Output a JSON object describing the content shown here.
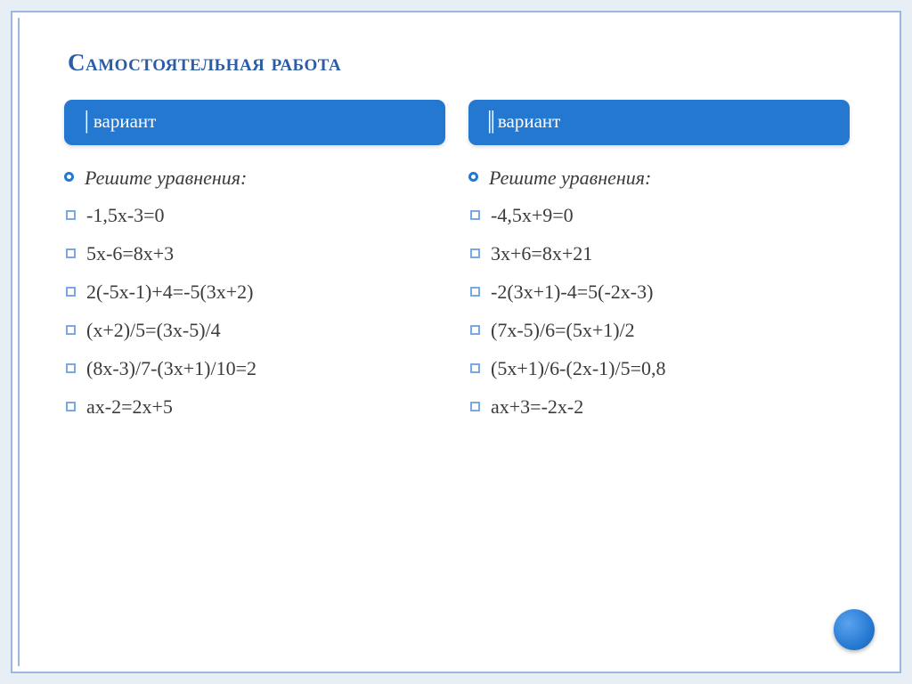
{
  "title": "Самостоятельная работа",
  "accent_color": "#2478d0",
  "title_color": "#2a5ca8",
  "border_color": "#9db8e0",
  "text_color": "#3b3b3b",
  "bg_color": "#ffffff",
  "page_bg": "#e8eef6",
  "title_fontsize": 27,
  "body_fontsize": 22,
  "left": {
    "header": "│вариант",
    "intro": "Решите уравнения:",
    "equations": [
      "-1,5x-3=0",
      "5x-6=8x+3",
      "2(-5x-1)+4=-5(3x+2)",
      "(x+2)/5=(3x-5)/4",
      "(8x-3)/7-(3x+1)/10=2",
      "ax-2=2x+5"
    ]
  },
  "right": {
    "header": "║вариант",
    "intro": "Решите уравнения:",
    "equations": [
      "-4,5x+9=0",
      "3x+6=8x+21",
      "-2(3x+1)-4=5(-2x-3)",
      "(7x-5)/6=(5x+1)/2",
      "(5x+1)/6-(2x-1)/5=0,8",
      "ax+3=-2x-2"
    ]
  }
}
